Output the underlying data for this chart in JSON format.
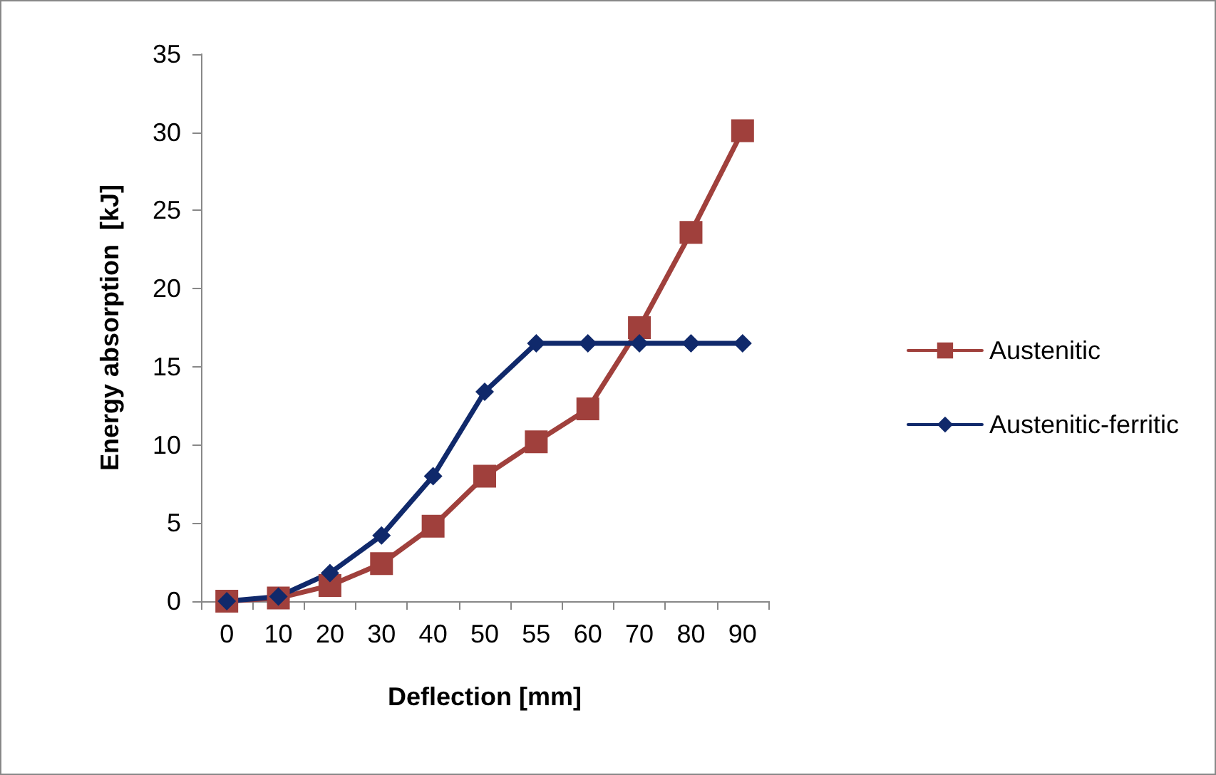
{
  "chart_data": {
    "type": "line",
    "xlabel": "Deflection [mm]",
    "ylabel": "Energy absorption  [kJ]",
    "categories": [
      "0",
      "10",
      "20",
      "30",
      "40",
      "50",
      "55",
      "60",
      "70",
      "80",
      "90"
    ],
    "series": [
      {
        "name": "Austenitic",
        "color": "#a0403c",
        "marker": "square",
        "values": [
          0,
          0.2,
          1.0,
          2.4,
          4.8,
          8.0,
          10.2,
          12.3,
          17.5,
          23.6,
          30.1
        ]
      },
      {
        "name": "Austenitic-ferritic",
        "color": "#10296b",
        "marker": "diamond",
        "values": [
          0,
          0.3,
          1.8,
          4.2,
          8.0,
          13.4,
          16.5,
          16.5,
          16.5,
          16.5,
          16.5
        ]
      }
    ],
    "ylim": [
      0,
      35
    ],
    "yticks": [
      0,
      5,
      10,
      15,
      20,
      25,
      30,
      35
    ],
    "grid": false,
    "legend": "right",
    "line_style": "solid"
  }
}
